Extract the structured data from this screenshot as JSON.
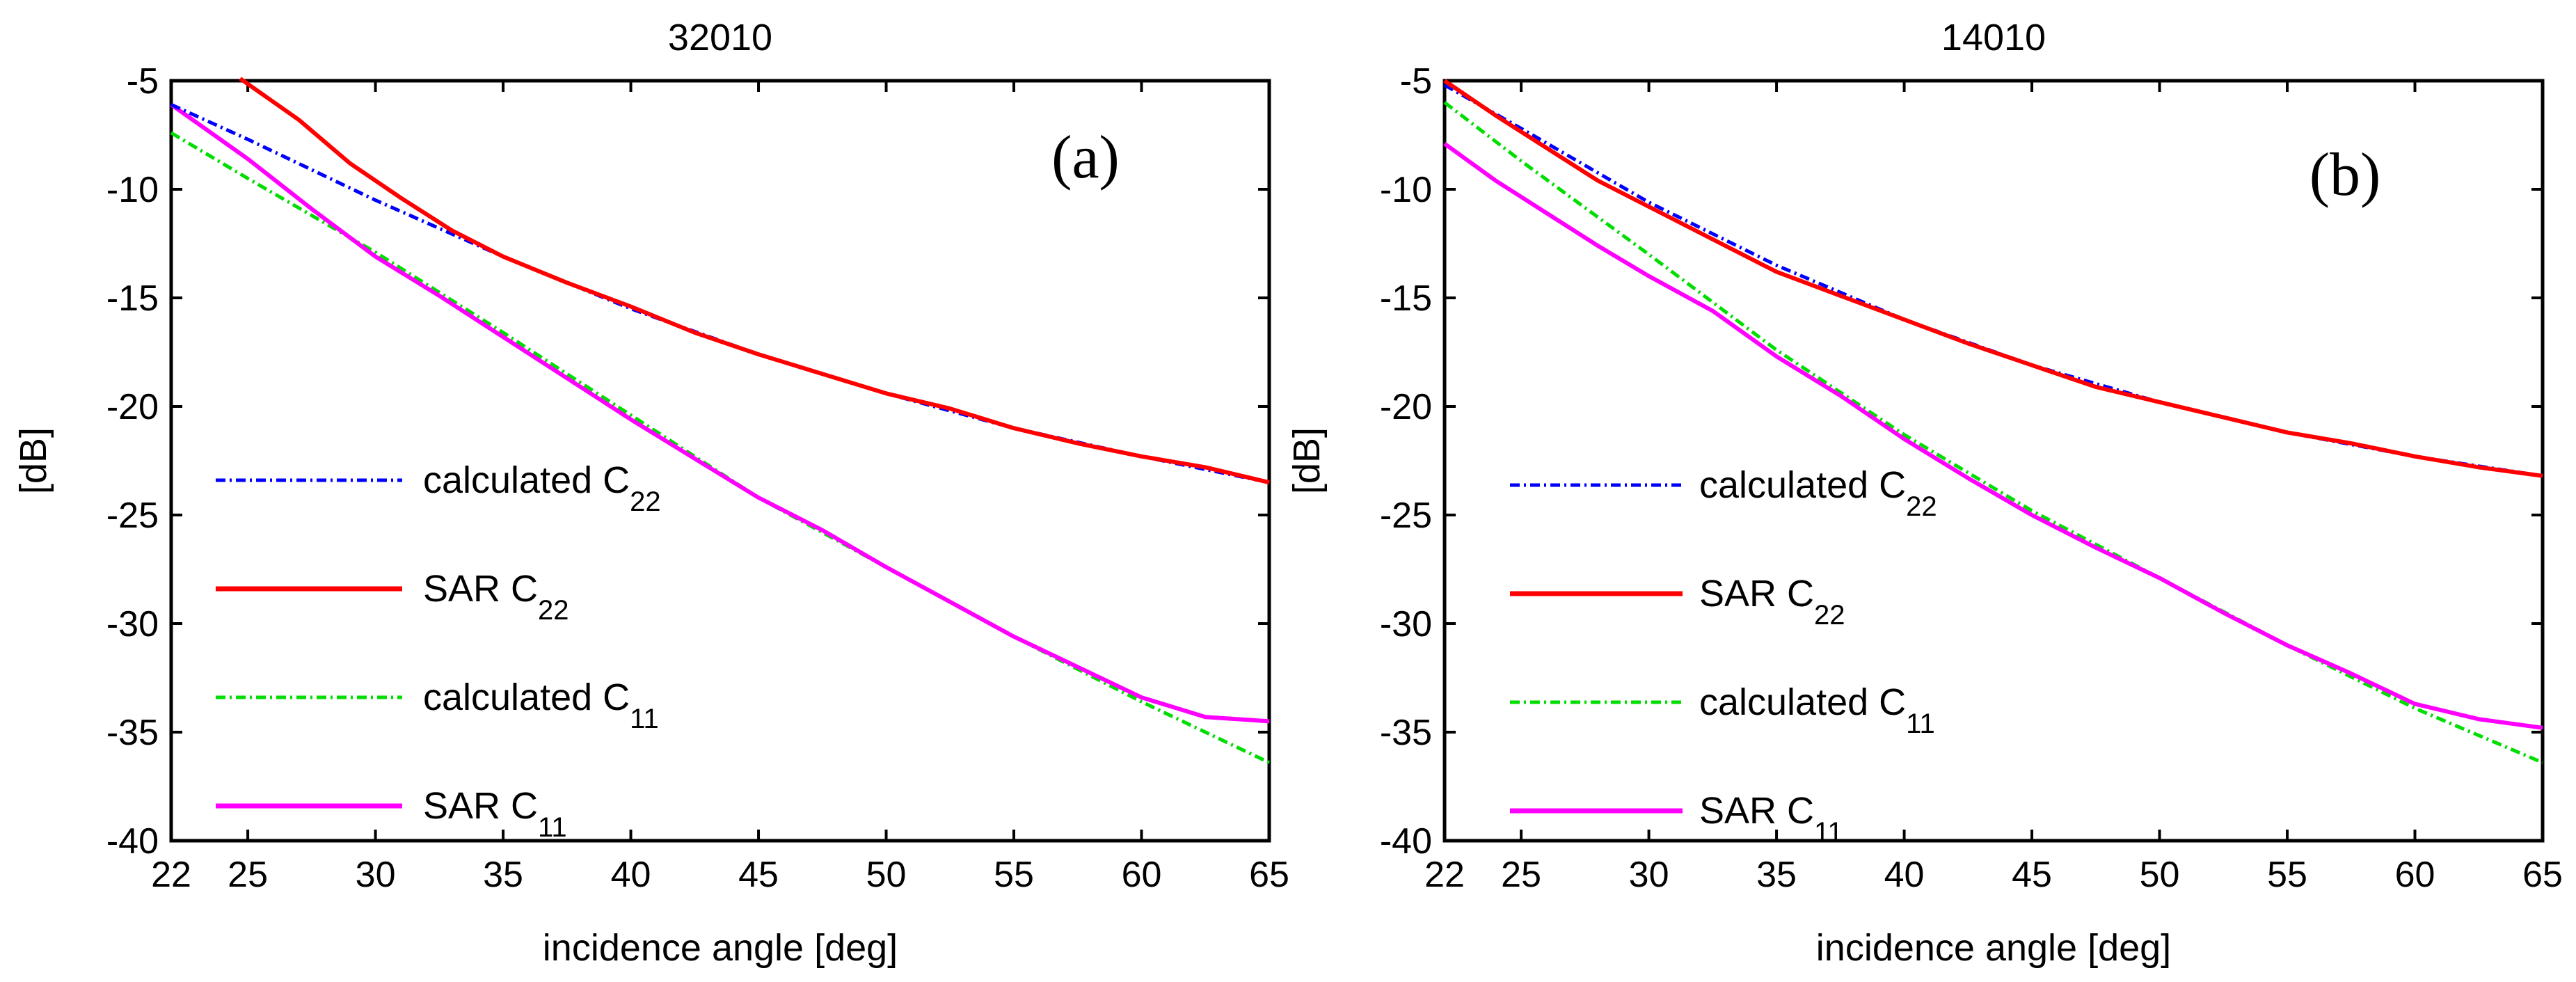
{
  "chart_data": [
    {
      "type": "line",
      "title": "32010",
      "panel_label": "(a)",
      "xlabel": "incidence angle [deg]",
      "ylabel": "[dB]",
      "xlim": [
        22,
        65
      ],
      "ylim": [
        -40,
        -5
      ],
      "xticks": [
        22,
        25,
        30,
        35,
        40,
        45,
        50,
        55,
        60,
        65
      ],
      "yticks": [
        -5,
        -10,
        -15,
        -20,
        -25,
        -30,
        -35,
        -40
      ],
      "legend_position": "left-middle",
      "series": [
        {
          "name": "calculated C22",
          "legend_main": "calculated C",
          "legend_sub": "22",
          "color": "#0000ff",
          "style": "dashdot",
          "x": [
            22,
            25,
            30,
            35,
            40,
            45,
            50,
            55,
            60,
            65
          ],
          "y": [
            -6.1,
            -7.7,
            -10.5,
            -13.1,
            -15.5,
            -17.6,
            -19.4,
            -21.0,
            -22.3,
            -23.5
          ]
        },
        {
          "name": "SAR C22",
          "legend_main": "SAR  C",
          "legend_sub": "22",
          "color": "#ff0000",
          "style": "solid",
          "x": [
            24.7,
            27,
            29,
            31,
            33,
            35,
            37.5,
            40,
            42.5,
            45,
            47.5,
            50,
            52.5,
            55,
            57.5,
            60,
            62.5,
            65
          ],
          "y": [
            -4.9,
            -6.8,
            -8.8,
            -10.4,
            -11.9,
            -13.1,
            -14.3,
            -15.4,
            -16.6,
            -17.6,
            -18.5,
            -19.4,
            -20.1,
            -21.0,
            -21.7,
            -22.3,
            -22.8,
            -23.5
          ]
        },
        {
          "name": "calculated C11",
          "legend_main": "calculated C",
          "legend_sub": "11",
          "color": "#00dd00",
          "style": "dashdot",
          "x": [
            22,
            25,
            30,
            35,
            40,
            45,
            50,
            55,
            60,
            65
          ],
          "y": [
            -7.4,
            -9.5,
            -12.9,
            -16.6,
            -20.4,
            -24.2,
            -27.4,
            -30.6,
            -33.6,
            -36.4
          ]
        },
        {
          "name": "SAR C11",
          "legend_main": "SAR  C",
          "legend_sub": "11",
          "color": "#ff00ff",
          "style": "solid",
          "x": [
            22,
            25,
            27.5,
            30,
            32.5,
            35,
            37.5,
            40,
            42.5,
            45,
            47.5,
            50,
            52.5,
            55,
            57.5,
            60,
            62.5,
            65
          ],
          "y": [
            -6.1,
            -8.6,
            -10.9,
            -13.1,
            -14.9,
            -16.8,
            -18.7,
            -20.6,
            -22.4,
            -24.2,
            -25.7,
            -27.4,
            -29.0,
            -30.6,
            -32.0,
            -33.4,
            -34.3,
            -34.5
          ]
        }
      ]
    },
    {
      "type": "line",
      "title": "14010",
      "panel_label": "(b)",
      "xlabel": "incidence angle [deg]",
      "ylabel": "[dB]",
      "xlim": [
        22,
        65
      ],
      "ylim": [
        -40,
        -5
      ],
      "xticks": [
        22,
        25,
        30,
        35,
        40,
        45,
        50,
        55,
        60,
        65
      ],
      "yticks": [
        -5,
        -10,
        -15,
        -20,
        -25,
        -30,
        -35,
        -40
      ],
      "legend_position": "left-middle",
      "series": [
        {
          "name": "calculated C22",
          "legend_main": "calculated C",
          "legend_sub": "22",
          "color": "#0000ff",
          "style": "dashdot",
          "x": [
            22,
            25,
            30,
            35,
            40,
            45,
            50,
            55,
            60,
            65
          ],
          "y": [
            -5.2,
            -7.2,
            -10.6,
            -13.5,
            -16.0,
            -18.1,
            -19.8,
            -21.2,
            -22.3,
            -23.2
          ]
        },
        {
          "name": "SAR C22",
          "legend_main": "SAR  C",
          "legend_sub": "22",
          "color": "#ff0000",
          "style": "solid",
          "x": [
            22,
            24,
            26,
            28,
            30,
            32.5,
            35,
            37.5,
            40,
            42.5,
            45,
            47.5,
            50,
            52.5,
            55,
            57.5,
            60,
            62.5,
            65
          ],
          "y": [
            -5.0,
            -6.6,
            -8.1,
            -9.6,
            -10.8,
            -12.3,
            -13.8,
            -14.9,
            -16.0,
            -17.1,
            -18.1,
            -19.1,
            -19.8,
            -20.5,
            -21.2,
            -21.7,
            -22.3,
            -22.8,
            -23.2
          ]
        },
        {
          "name": "calculated C11",
          "legend_main": "calculated C",
          "legend_sub": "11",
          "color": "#00dd00",
          "style": "dashdot",
          "x": [
            22,
            25,
            30,
            35,
            40,
            45,
            50,
            55,
            60,
            65
          ],
          "y": [
            -6.0,
            -8.7,
            -13.0,
            -17.4,
            -21.3,
            -24.8,
            -27.9,
            -31.0,
            -33.9,
            -36.4
          ]
        },
        {
          "name": "SAR C11",
          "legend_main": "SAR  C",
          "legend_sub": "11",
          "color": "#ff00ff",
          "style": "solid",
          "x": [
            22,
            24,
            26,
            28,
            30,
            32.5,
            35,
            37.5,
            40,
            42.5,
            45,
            47.5,
            50,
            52.5,
            55,
            57.5,
            60,
            62.5,
            65
          ],
          "y": [
            -7.9,
            -9.6,
            -11.1,
            -12.6,
            -14.0,
            -15.6,
            -17.7,
            -19.5,
            -21.5,
            -23.3,
            -25.0,
            -26.5,
            -27.9,
            -29.5,
            -31.0,
            -32.3,
            -33.7,
            -34.4,
            -34.8
          ]
        }
      ]
    }
  ]
}
